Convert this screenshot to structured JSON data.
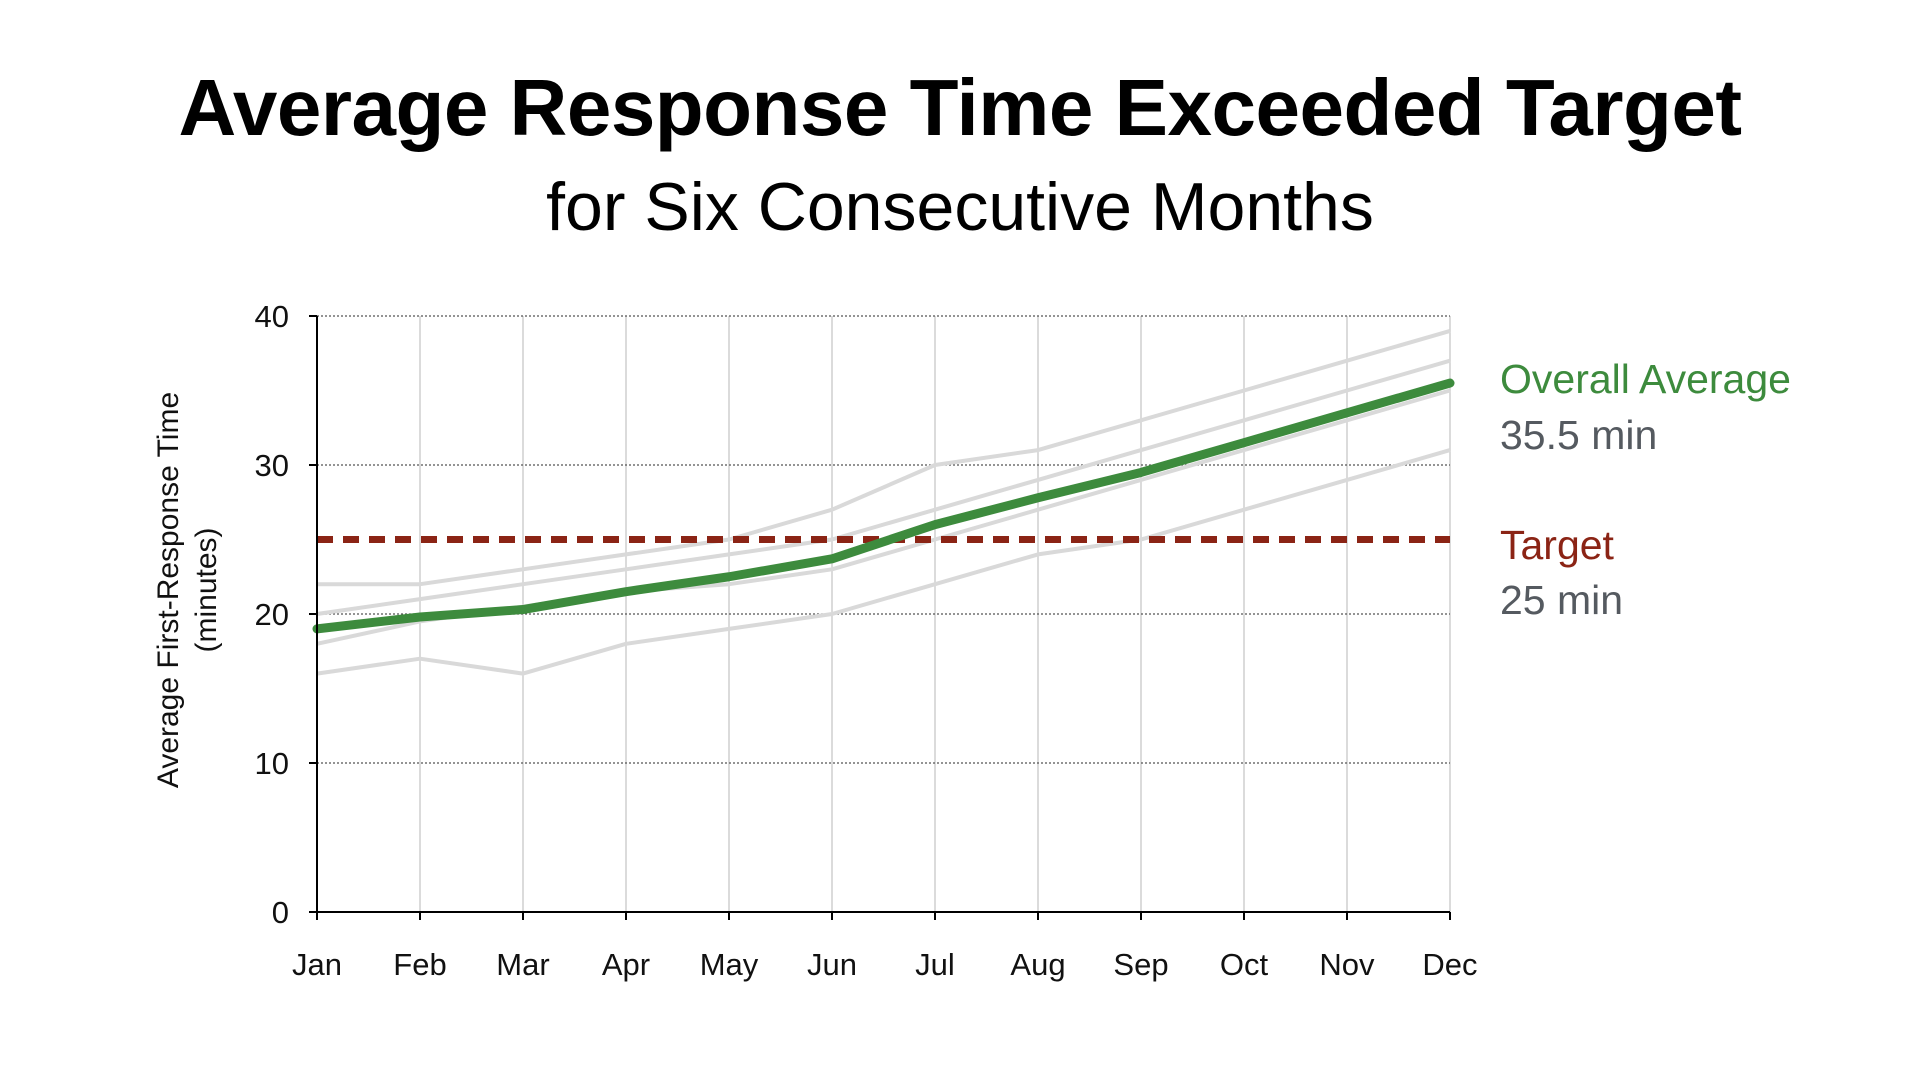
{
  "chart_data": {
    "type": "line",
    "title": "Average Response Time Exceeded Target",
    "subtitle": "for Six Consecutive Months",
    "ylabel_line1": "Average First-Response Time",
    "ylabel_line2": "(minutes)",
    "xlabel": "",
    "categories": [
      "Jan",
      "Feb",
      "Mar",
      "Apr",
      "May",
      "Jun",
      "Jul",
      "Aug",
      "Sep",
      "Oct",
      "Nov",
      "Dec"
    ],
    "ylim": [
      0,
      40
    ],
    "yticks": [
      0,
      10,
      20,
      30,
      40
    ],
    "grid": true,
    "background_series": [
      {
        "values": [
          22,
          22,
          23,
          24,
          25,
          27,
          30,
          31,
          33,
          35,
          37,
          39
        ]
      },
      {
        "values": [
          20,
          21,
          22,
          23,
          24,
          25,
          27,
          29,
          31,
          33,
          35,
          37
        ]
      },
      {
        "values": [
          18,
          19.5,
          20.5,
          21.5,
          22,
          23,
          25,
          27,
          29,
          31,
          33,
          35
        ]
      },
      {
        "values": [
          16,
          17,
          16,
          18,
          19,
          20,
          22,
          24,
          25,
          27,
          29,
          31
        ]
      }
    ],
    "highlight_series": {
      "name": "Overall Average",
      "values": [
        19,
        19.8,
        20.3,
        21.5,
        22.5,
        23.7,
        26,
        27.8,
        29.5,
        31.5,
        33.5,
        35.5
      ],
      "label": "Overall Average",
      "value_label": "35.5 min",
      "color": "#3d8b3d"
    },
    "target": {
      "value": 25,
      "label": "Target",
      "value_label": "25 min",
      "color": "#8b2415"
    },
    "colors": {
      "background_series": "#d9d9d9",
      "value_text": "#555a60",
      "grid": "#555555",
      "axis": "#000000"
    }
  }
}
